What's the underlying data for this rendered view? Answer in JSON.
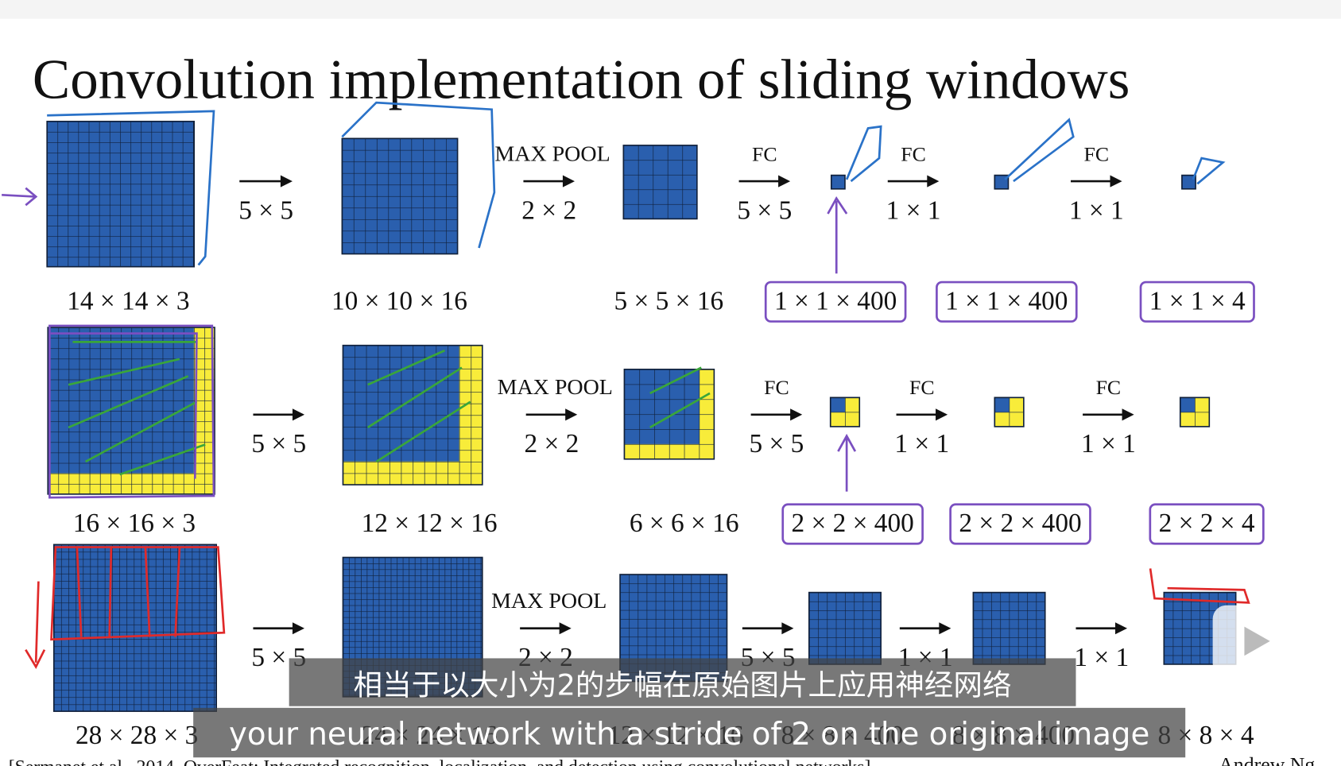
{
  "title": "Convolution implementation of sliding windows",
  "rows": [
    {
      "input": "14 × 14 × 3",
      "steps": [
        {
          "op": "5 × 5",
          "output": "10 × 10 × 16"
        },
        {
          "label": "MAX POOL",
          "op": "2 × 2",
          "output": "5 × 5 × 16"
        },
        {
          "label": "FC",
          "op": "5 × 5",
          "output": "1 × 1 × 400"
        },
        {
          "label": "FC",
          "op": "1 × 1",
          "output": "1 × 1 × 400"
        },
        {
          "label": "FC",
          "op": "1 × 1",
          "output": "1 × 1 × 4"
        }
      ]
    },
    {
      "input": "16 × 16 × 3",
      "steps": [
        {
          "op": "5 × 5",
          "output": "12 × 12 × 16"
        },
        {
          "label": "MAX POOL",
          "op": "2 × 2",
          "output": "6 × 6 × 16"
        },
        {
          "label": "FC",
          "op": "5 × 5",
          "output": "2 × 2 × 400"
        },
        {
          "label": "FC",
          "op": "1 × 1",
          "output": "2 × 2 × 400"
        },
        {
          "label": "FC",
          "op": "1 × 1",
          "output": "2 × 2 × 4"
        }
      ]
    },
    {
      "input": "28 × 28 × 3",
      "steps": [
        {
          "op": "5 × 5",
          "output": "24 × 24 × 16"
        },
        {
          "label": "MAX POOL",
          "op": "2 × 2",
          "output": "12 × 12 × 16"
        },
        {
          "op": "5 × 5",
          "output": "8 × 8 × 400"
        },
        {
          "op": "1 × 1",
          "output": "8 × 8 × 400"
        },
        {
          "op": "1 × 1",
          "output": "8 × 8 × 4"
        }
      ]
    }
  ],
  "subtitles": [
    "相当于以大小为2的步幅在原始图片上应用神经网络",
    "your neural network with a stride of 2 on the original image"
  ],
  "citation": "[Sermanet et al., 2014, OverFeat: Integrated recognition, localization, and detection using convolutional networks]",
  "author": "Andrew Ng"
}
